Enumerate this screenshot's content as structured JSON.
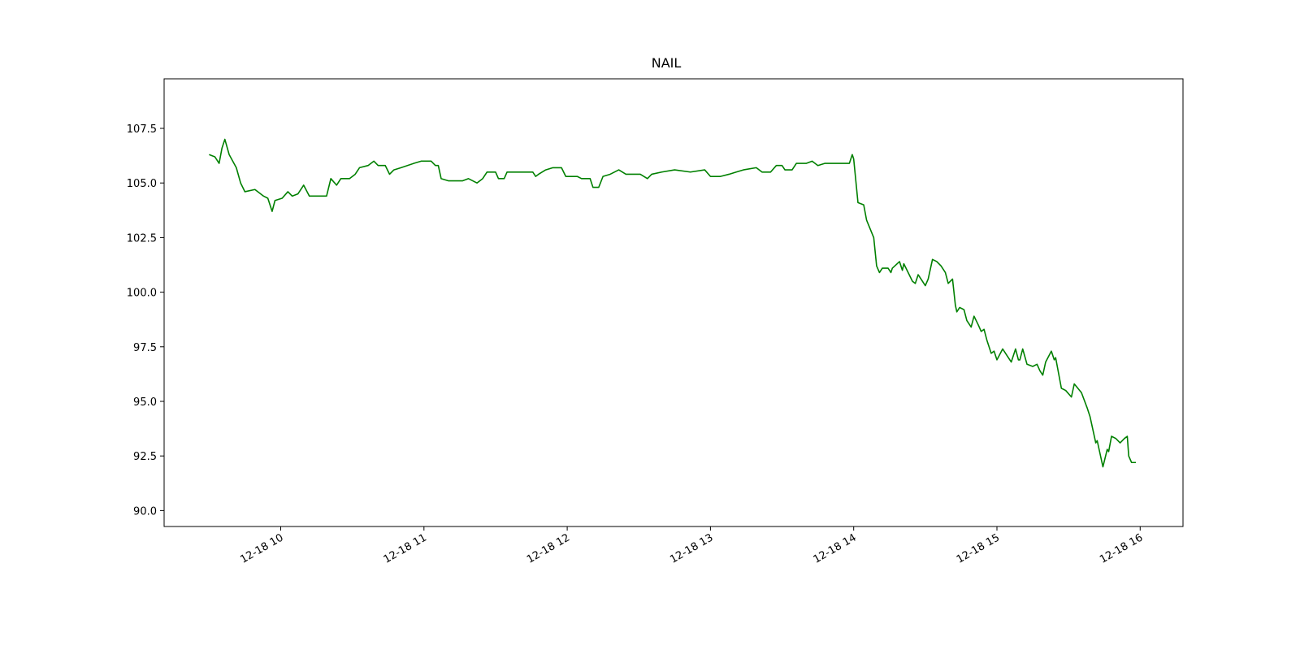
{
  "chart_data": {
    "type": "line",
    "title": "NAIL",
    "color": "#008000",
    "x": [
      9.5,
      9.54,
      9.57,
      9.59,
      9.61,
      9.64,
      9.69,
      9.72,
      9.75,
      9.82,
      9.88,
      9.91,
      9.94,
      9.96,
      10.01,
      10.05,
      10.08,
      10.12,
      10.16,
      10.2,
      10.32,
      10.35,
      10.39,
      10.42,
      10.48,
      10.52,
      10.55,
      10.61,
      10.65,
      10.68,
      10.73,
      10.76,
      10.79,
      10.84,
      10.93,
      10.98,
      11.05,
      11.08,
      11.1,
      11.12,
      11.17,
      11.27,
      11.31,
      11.37,
      11.41,
      11.44,
      11.5,
      11.52,
      11.56,
      11.58,
      11.76,
      11.78,
      11.8,
      11.85,
      11.9,
      11.96,
      11.99,
      12.07,
      12.1,
      12.16,
      12.18,
      12.22,
      12.25,
      12.3,
      12.36,
      12.41,
      12.51,
      12.56,
      12.59,
      12.66,
      12.75,
      12.86,
      12.96,
      13.0,
      13.07,
      13.13,
      13.18,
      13.23,
      13.32,
      13.36,
      13.42,
      13.46,
      13.5,
      13.52,
      13.57,
      13.6,
      13.67,
      13.71,
      13.75,
      13.8,
      13.97,
      13.99,
      14.0,
      14.03,
      14.07,
      14.09,
      14.14,
      14.16,
      14.18,
      14.2,
      14.24,
      14.26,
      14.27,
      14.32,
      14.34,
      14.35,
      14.41,
      14.43,
      14.45,
      14.47,
      14.5,
      14.52,
      14.55,
      14.58,
      14.61,
      14.64,
      14.66,
      14.69,
      14.71,
      14.72,
      14.74,
      14.77,
      14.79,
      14.8,
      14.82,
      14.84,
      14.87,
      14.89,
      14.91,
      14.93,
      14.94,
      14.96,
      14.98,
      15.0,
      15.04,
      15.07,
      15.1,
      15.13,
      15.15,
      15.16,
      15.18,
      15.21,
      15.25,
      15.28,
      15.3,
      15.32,
      15.34,
      15.38,
      15.4,
      15.41,
      15.45,
      15.48,
      15.52,
      15.54,
      15.59,
      15.63,
      15.65,
      15.69,
      15.7,
      15.74,
      15.77,
      15.78,
      15.8,
      15.83,
      15.86,
      15.89,
      15.91,
      15.92,
      15.94,
      15.97
    ],
    "values": [
      106.3,
      106.2,
      105.9,
      106.6,
      107.0,
      106.3,
      105.7,
      105.0,
      104.6,
      104.7,
      104.4,
      104.3,
      103.7,
      104.2,
      104.3,
      104.6,
      104.4,
      104.5,
      104.9,
      104.4,
      104.4,
      105.2,
      104.9,
      105.2,
      105.2,
      105.4,
      105.7,
      105.8,
      106.0,
      105.8,
      105.8,
      105.4,
      105.6,
      105.7,
      105.9,
      106.0,
      106.0,
      105.8,
      105.8,
      105.2,
      105.1,
      105.1,
      105.2,
      105.0,
      105.2,
      105.5,
      105.5,
      105.2,
      105.2,
      105.5,
      105.5,
      105.3,
      105.4,
      105.6,
      105.7,
      105.7,
      105.3,
      105.3,
      105.2,
      105.2,
      104.8,
      104.8,
      105.3,
      105.4,
      105.6,
      105.4,
      105.4,
      105.2,
      105.4,
      105.5,
      105.6,
      105.5,
      105.6,
      105.3,
      105.3,
      105.4,
      105.5,
      105.6,
      105.7,
      105.5,
      105.5,
      105.8,
      105.8,
      105.6,
      105.6,
      105.9,
      105.9,
      106.0,
      105.8,
      105.9,
      105.9,
      106.3,
      106.1,
      104.1,
      104.0,
      103.3,
      102.5,
      101.2,
      100.9,
      101.1,
      101.1,
      100.9,
      101.1,
      101.4,
      101.0,
      101.3,
      100.5,
      100.4,
      100.8,
      100.6,
      100.3,
      100.6,
      101.5,
      101.4,
      101.2,
      100.9,
      100.4,
      100.6,
      99.4,
      99.1,
      99.3,
      99.2,
      98.7,
      98.6,
      98.4,
      98.9,
      98.5,
      98.2,
      98.3,
      97.8,
      97.6,
      97.2,
      97.3,
      96.9,
      97.4,
      97.1,
      96.8,
      97.4,
      96.9,
      96.9,
      97.4,
      96.7,
      96.6,
      96.7,
      96.4,
      96.2,
      96.8,
      97.3,
      96.9,
      97.0,
      95.6,
      95.5,
      95.2,
      95.8,
      95.4,
      94.7,
      94.3,
      93.1,
      93.2,
      92.0,
      92.8,
      92.7,
      93.4,
      93.3,
      93.1,
      93.3,
      93.4,
      92.5,
      92.2,
      92.2
    ],
    "xlim": [
      9.186,
      16.299
    ],
    "xticks": [
      {
        "value": 10,
        "label": "12-18 10"
      },
      {
        "value": 11,
        "label": "12-18 11"
      },
      {
        "value": 12,
        "label": "12-18 12"
      },
      {
        "value": 13,
        "label": "12-18 13"
      },
      {
        "value": 14,
        "label": "12-18 14"
      },
      {
        "value": 15,
        "label": "12-18 15"
      },
      {
        "value": 16,
        "label": "12-18 16"
      }
    ],
    "ylim": [
      89.27,
      109.77
    ],
    "yticks": [
      {
        "value": 90,
        "label": "90.0"
      },
      92.5,
      {
        "value": 95,
        "label": "95.0"
      },
      97.5,
      {
        "value": 100,
        "label": "100.0"
      },
      102.5,
      {
        "value": 105,
        "label": "105.0"
      },
      107.5
    ],
    "grid": false
  }
}
